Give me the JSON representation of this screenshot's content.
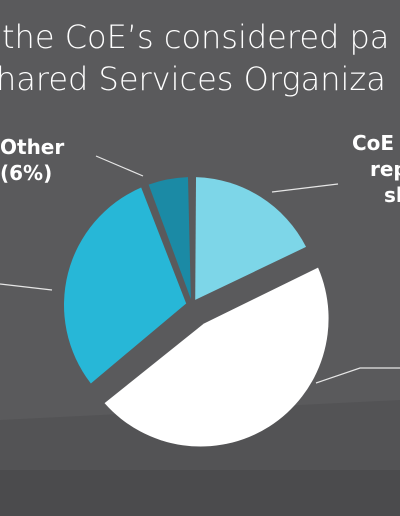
{
  "title": {
    "line1": "the CoE’s considered pa",
    "line2": "hared Services Organiza"
  },
  "colors": {
    "background": "#5a5a5c",
    "background_lower": "#4b4b4d",
    "slice_light_blue": "#7dd6e8",
    "slice_white": "#ffffff",
    "slice_medium_blue": "#27b7d7",
    "slice_dark_teal": "#1b8aa5",
    "leader_line": "#e6e6e6"
  },
  "labels": {
    "other_line1": "Other",
    "other_line2": "(6%)",
    "coe_line1": "CoE",
    "coe_line2": "rep",
    "coe_line3": "sh"
  },
  "chart_data": {
    "type": "pie",
    "categories": [
      "CoE rep sh",
      "",
      "",
      "Other"
    ],
    "values": [
      18,
      46,
      30,
      6
    ],
    "colors": [
      "#7dd6e8",
      "#ffffff",
      "#27b7d7",
      "#1b8aa5"
    ],
    "title": "",
    "exploded_index": 1,
    "start_angle_deg": 0
  }
}
